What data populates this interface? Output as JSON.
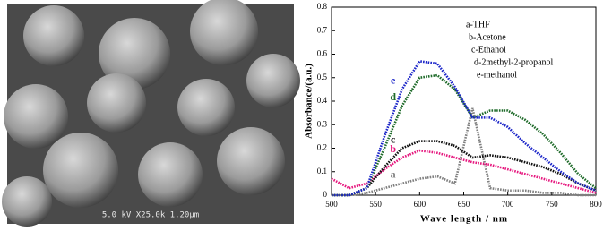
{
  "image": {
    "caption": "5.0 kV X25.0k 1.20µm"
  },
  "chart_data": {
    "type": "line",
    "x_label": "Wave length / nm",
    "y_label": "Absorbance/(a.u.)",
    "x": [
      500,
      520,
      540,
      560,
      580,
      600,
      620,
      640,
      660,
      680,
      700,
      720,
      740,
      760,
      780,
      800
    ],
    "series": [
      {
        "name": "a-THF",
        "label": "a",
        "color": "#7f7f7f",
        "values": [
          0,
          0,
          0.01,
          0.03,
          0.05,
          0.07,
          0.08,
          0.05,
          0.37,
          0.03,
          0.02,
          0.02,
          0.01,
          0.01,
          0,
          0
        ]
      },
      {
        "name": "b-Acetone",
        "label": "b",
        "color": "#e6197f",
        "values": [
          0.07,
          0.03,
          0.05,
          0.11,
          0.16,
          0.19,
          0.18,
          0.16,
          0.14,
          0.13,
          0.11,
          0.09,
          0.07,
          0.05,
          0.03,
          0.01
        ]
      },
      {
        "name": "c-Ethanol",
        "label": "c",
        "color": "#111111",
        "values": [
          0,
          0,
          0.03,
          0.12,
          0.2,
          0.23,
          0.23,
          0.21,
          0.16,
          0.17,
          0.16,
          0.14,
          0.12,
          0.09,
          0.05,
          0.02
        ]
      },
      {
        "name": "d-2methyl-2-propanol",
        "label": "d",
        "color": "#1f6b2a",
        "values": [
          0,
          0,
          0.03,
          0.2,
          0.38,
          0.5,
          0.51,
          0.45,
          0.33,
          0.36,
          0.36,
          0.32,
          0.26,
          0.18,
          0.09,
          0.03
        ]
      },
      {
        "name": "e-methanol",
        "label": "e",
        "color": "#1a24c8",
        "values": [
          0,
          0,
          0.03,
          0.25,
          0.45,
          0.57,
          0.56,
          0.46,
          0.33,
          0.33,
          0.29,
          0.22,
          0.16,
          0.1,
          0.05,
          0.02
        ]
      }
    ],
    "xlim": [
      500,
      800
    ],
    "xticks": [
      500,
      550,
      600,
      650,
      700,
      750,
      800
    ],
    "ylim": [
      0,
      0.8
    ],
    "yticks": [
      0,
      0.1,
      0.2,
      0.3,
      0.4,
      0.5,
      0.6,
      0.7,
      0.8
    ]
  }
}
